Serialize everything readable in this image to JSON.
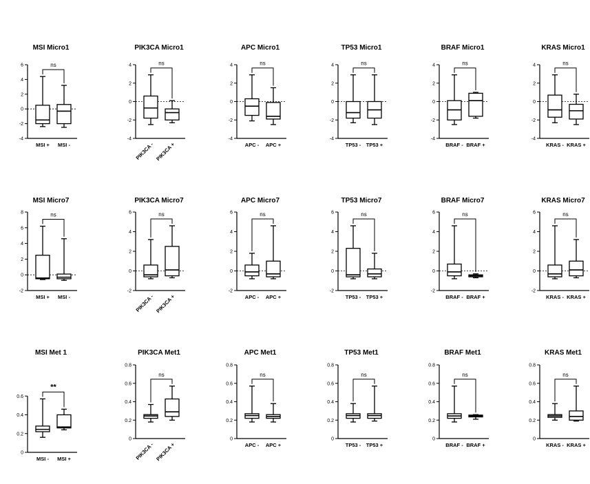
{
  "chart_data": [
    {
      "type": "box",
      "title": "MSI Micro1",
      "ylim": [
        -4,
        6
      ],
      "yticks": [
        -4,
        -2,
        0,
        2,
        4,
        6
      ],
      "categories": [
        "MSI +",
        "MSI -"
      ],
      "rotate": false,
      "significance": "ns",
      "boxes": [
        {
          "min": -2.4,
          "q1": -2.0,
          "median": -1.5,
          "q3": 0.5,
          "max": 4.4
        },
        {
          "min": -2.5,
          "q1": -2.0,
          "median": -0.3,
          "q3": 0.6,
          "max": 3.2
        }
      ]
    },
    {
      "type": "box",
      "title": "PIK3CA Micro1",
      "ylim": [
        -4,
        4
      ],
      "yticks": [
        -4,
        -2,
        0,
        2,
        4
      ],
      "categories": [
        "PIK3CA -",
        "PIK3CA +"
      ],
      "rotate": true,
      "significance": "ns",
      "boxes": [
        {
          "min": -2.5,
          "q1": -1.8,
          "median": -0.7,
          "q3": 0.6,
          "max": 2.9
        },
        {
          "min": -2.3,
          "q1": -2.0,
          "median": -1.2,
          "q3": -0.8,
          "max": 0.1
        }
      ]
    },
    {
      "type": "box",
      "title": "APC Micro1",
      "ylim": [
        -4,
        4
      ],
      "yticks": [
        -4,
        -2,
        0,
        2,
        4
      ],
      "categories": [
        "APC -",
        "APC +"
      ],
      "rotate": false,
      "significance": "ns",
      "boxes": [
        {
          "min": -2.1,
          "q1": -1.5,
          "median": -0.5,
          "q3": 0.3,
          "max": 2.9
        },
        {
          "min": -2.5,
          "q1": -1.9,
          "median": -1.6,
          "q3": -0.1,
          "max": 1.5
        }
      ]
    },
    {
      "type": "box",
      "title": "TP53 Micro1",
      "ylim": [
        -4,
        4
      ],
      "yticks": [
        -4,
        -2,
        0,
        2,
        4
      ],
      "categories": [
        "TP53 -",
        "TP53 +"
      ],
      "rotate": false,
      "significance": "ns",
      "boxes": [
        {
          "min": -2.3,
          "q1": -1.8,
          "median": -1.2,
          "q3": 0.0,
          "max": 2.9
        },
        {
          "min": -2.5,
          "q1": -1.8,
          "median": -0.9,
          "q3": 0.0,
          "max": 2.9
        }
      ]
    },
    {
      "type": "box",
      "title": "BRAF Micro1",
      "ylim": [
        -4,
        4
      ],
      "yticks": [
        -4,
        -2,
        0,
        2,
        4
      ],
      "categories": [
        "BRAF -",
        "BRAF +"
      ],
      "rotate": false,
      "significance": "ns",
      "boxes": [
        {
          "min": -2.5,
          "q1": -2.0,
          "median": -0.9,
          "q3": 0.1,
          "max": 2.9
        },
        {
          "min": -1.8,
          "q1": -1.6,
          "median": 0.1,
          "q3": 0.9,
          "max": 1.0
        }
      ]
    },
    {
      "type": "box",
      "title": "KRAS Micro1",
      "ylim": [
        -4,
        4
      ],
      "yticks": [
        -4,
        -2,
        0,
        2,
        4
      ],
      "categories": [
        "KRAS -",
        "KRAS +"
      ],
      "rotate": false,
      "significance": "ns",
      "boxes": [
        {
          "min": -2.3,
          "q1": -1.7,
          "median": -0.9,
          "q3": 0.7,
          "max": 2.9
        },
        {
          "min": -2.5,
          "q1": -1.9,
          "median": -1.0,
          "q3": -0.3,
          "max": 0.8
        }
      ]
    },
    {
      "type": "box",
      "title": "MSI Micro7",
      "ylim": [
        -2,
        8
      ],
      "yticks": [
        -2,
        0,
        2,
        4,
        6,
        8
      ],
      "categories": [
        "MSI +",
        "MSI -"
      ],
      "rotate": false,
      "significance": "ns",
      "boxes": [
        {
          "min": -0.6,
          "q1": -0.5,
          "median": -0.4,
          "q3": 2.5,
          "max": 6.2
        },
        {
          "min": -0.7,
          "q1": -0.5,
          "median": -0.3,
          "q3": 0.1,
          "max": 4.6
        }
      ]
    },
    {
      "type": "box",
      "title": "PIK3CA Micro7",
      "ylim": [
        -2,
        6
      ],
      "yticks": [
        -2,
        0,
        2,
        4,
        6
      ],
      "categories": [
        "PIK3CA -",
        "PIK3CA +"
      ],
      "rotate": true,
      "significance": "ns",
      "boxes": [
        {
          "min": -0.8,
          "q1": -0.6,
          "median": -0.4,
          "q3": 0.6,
          "max": 3.2
        },
        {
          "min": -0.7,
          "q1": -0.5,
          "median": 0.1,
          "q3": 2.5,
          "max": 4.6
        }
      ]
    },
    {
      "type": "box",
      "title": "APC Micro7",
      "ylim": [
        -2,
        6
      ],
      "yticks": [
        -2,
        0,
        2,
        4,
        6
      ],
      "categories": [
        "APC -",
        "APC +"
      ],
      "rotate": false,
      "significance": "ns",
      "boxes": [
        {
          "min": -0.8,
          "q1": -0.5,
          "median": -0.1,
          "q3": 0.6,
          "max": 1.8
        },
        {
          "min": -0.8,
          "q1": -0.6,
          "median": -0.3,
          "q3": 1.0,
          "max": 4.6
        }
      ]
    },
    {
      "type": "box",
      "title": "TP53 Micro7",
      "ylim": [
        -2,
        6
      ],
      "yticks": [
        -2,
        0,
        2,
        4,
        6
      ],
      "categories": [
        "TP53 -",
        "TP53 +"
      ],
      "rotate": false,
      "significance": "ns",
      "boxes": [
        {
          "min": -0.8,
          "q1": -0.6,
          "median": -0.4,
          "q3": 2.3,
          "max": 4.6
        },
        {
          "min": -0.8,
          "q1": -0.6,
          "median": -0.3,
          "q3": 0.2,
          "max": 1.8
        }
      ]
    },
    {
      "type": "box",
      "title": "BRAF Micro7",
      "ylim": [
        -2,
        6
      ],
      "yticks": [
        -2,
        0,
        2,
        4,
        6
      ],
      "categories": [
        "BRAF -",
        "BRAF +"
      ],
      "rotate": false,
      "significance": "ns",
      "boxes": [
        {
          "min": -0.8,
          "q1": -0.5,
          "median": -0.1,
          "q3": 0.7,
          "max": 4.6
        },
        {
          "min": -0.7,
          "q1": -0.6,
          "median": -0.5,
          "q3": -0.4,
          "max": -0.3
        }
      ]
    },
    {
      "type": "box",
      "title": "KRAS Micro7",
      "ylim": [
        -2,
        6
      ],
      "yticks": [
        -2,
        0,
        2,
        4,
        6
      ],
      "categories": [
        "KRAS -",
        "KRAS +"
      ],
      "rotate": false,
      "significance": "ns",
      "boxes": [
        {
          "min": -0.8,
          "q1": -0.6,
          "median": -0.3,
          "q3": 0.6,
          "max": 4.6
        },
        {
          "min": -0.7,
          "q1": -0.5,
          "median": 0.1,
          "q3": 1.0,
          "max": 3.2
        }
      ]
    },
    {
      "type": "box",
      "title": "MSI Met 1",
      "ylim": [
        0.0,
        0.8
      ],
      "yticks": [
        0.0,
        0.2,
        0.4,
        0.6
      ],
      "categories": [
        "MSI -",
        "MSI +"
      ],
      "rotate": false,
      "significance": "**",
      "boxes": [
        {
          "min": 0.16,
          "q1": 0.22,
          "median": 0.245,
          "q3": 0.28,
          "max": 0.57
        },
        {
          "min": 0.24,
          "q1": 0.26,
          "median": 0.27,
          "q3": 0.4,
          "max": 0.46
        }
      ]
    },
    {
      "type": "box",
      "title": "PIK3CA Met1",
      "ylim": [
        0.0,
        0.8
      ],
      "yticks": [
        0.0,
        0.2,
        0.4,
        0.6,
        0.8
      ],
      "categories": [
        "PIK3CA -",
        "PIK3CA +"
      ],
      "rotate": true,
      "significance": "ns",
      "boxes": [
        {
          "min": 0.18,
          "q1": 0.22,
          "median": 0.245,
          "q3": 0.26,
          "max": 0.37
        },
        {
          "min": 0.2,
          "q1": 0.24,
          "median": 0.29,
          "q3": 0.43,
          "max": 0.57
        }
      ]
    },
    {
      "type": "box",
      "title": "APC Met1",
      "ylim": [
        0.0,
        0.8
      ],
      "yticks": [
        0.0,
        0.2,
        0.4,
        0.6,
        0.8
      ],
      "categories": [
        "APC -",
        "APC +"
      ],
      "rotate": false,
      "significance": "ns",
      "boxes": [
        {
          "min": 0.18,
          "q1": 0.22,
          "median": 0.25,
          "q3": 0.27,
          "max": 0.57
        },
        {
          "min": 0.18,
          "q1": 0.22,
          "median": 0.24,
          "q3": 0.26,
          "max": 0.38
        }
      ]
    },
    {
      "type": "box",
      "title": "TP53 Met1",
      "ylim": [
        0.0,
        0.8
      ],
      "yticks": [
        0.0,
        0.2,
        0.4,
        0.6,
        0.8
      ],
      "categories": [
        "TP53 -",
        "TP53 +"
      ],
      "rotate": false,
      "significance": "ns",
      "boxes": [
        {
          "min": 0.18,
          "q1": 0.22,
          "median": 0.25,
          "q3": 0.27,
          "max": 0.38
        },
        {
          "min": 0.19,
          "q1": 0.22,
          "median": 0.25,
          "q3": 0.27,
          "max": 0.57
        }
      ]
    },
    {
      "type": "box",
      "title": "BRAF Met1",
      "ylim": [
        0.0,
        0.8
      ],
      "yticks": [
        0.0,
        0.2,
        0.4,
        0.6,
        0.8
      ],
      "categories": [
        "BRAF -",
        "BRAF +"
      ],
      "rotate": false,
      "significance": "ns",
      "boxes": [
        {
          "min": 0.18,
          "q1": 0.22,
          "median": 0.245,
          "q3": 0.27,
          "max": 0.57
        },
        {
          "min": 0.21,
          "q1": 0.235,
          "median": 0.245,
          "q3": 0.255,
          "max": 0.26
        }
      ]
    },
    {
      "type": "box",
      "title": "KRAS Met1",
      "ylim": [
        0.0,
        0.8
      ],
      "yticks": [
        0.0,
        0.2,
        0.4,
        0.6,
        0.8
      ],
      "categories": [
        "KRAS -",
        "KRAS +"
      ],
      "rotate": false,
      "significance": "ns",
      "boxes": [
        {
          "min": 0.2,
          "q1": 0.23,
          "median": 0.245,
          "q3": 0.26,
          "max": 0.38
        },
        {
          "min": 0.19,
          "q1": 0.2,
          "median": 0.24,
          "q3": 0.3,
          "max": 0.57
        }
      ]
    }
  ]
}
